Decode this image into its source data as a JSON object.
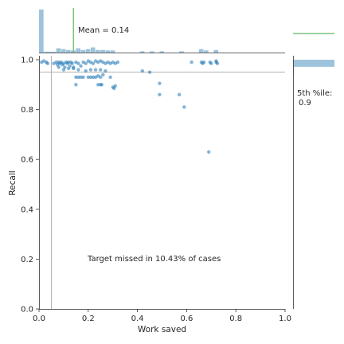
{
  "chart_data": [
    {
      "type": "scatter",
      "title": "",
      "xlabel": "Work saved",
      "ylabel": "Recall",
      "xlim": [
        0,
        1
      ],
      "ylim": [
        0,
        1
      ],
      "xticks": [
        "0.0",
        "0.2",
        "0.4",
        "0.6",
        "0.8",
        "1.0"
      ],
      "yticks": [
        "0.0",
        "0.2",
        "0.4",
        "0.6",
        "0.8",
        "1.0"
      ],
      "point_color": "#1f77b4",
      "reference_lines": {
        "x": 0.05,
        "y": 0.95,
        "color": "#b0b0b0"
      },
      "annotation": "Target missed in 10.43% of cases",
      "points": [
        {
          "x": 0.01,
          "y": 0.99
        },
        {
          "x": 0.02,
          "y": 0.995
        },
        {
          "x": 0.03,
          "y": 0.99
        },
        {
          "x": 0.035,
          "y": 0.985
        },
        {
          "x": 0.06,
          "y": 0.985
        },
        {
          "x": 0.07,
          "y": 0.99
        },
        {
          "x": 0.075,
          "y": 0.98
        },
        {
          "x": 0.08,
          "y": 0.99
        },
        {
          "x": 0.085,
          "y": 0.985
        },
        {
          "x": 0.09,
          "y": 0.99
        },
        {
          "x": 0.095,
          "y": 0.98
        },
        {
          "x": 0.1,
          "y": 0.985
        },
        {
          "x": 0.105,
          "y": 0.97
        },
        {
          "x": 0.11,
          "y": 0.99
        },
        {
          "x": 0.115,
          "y": 0.985
        },
        {
          "x": 0.12,
          "y": 0.99
        },
        {
          "x": 0.125,
          "y": 0.975
        },
        {
          "x": 0.13,
          "y": 0.99
        },
        {
          "x": 0.135,
          "y": 0.985
        },
        {
          "x": 0.14,
          "y": 0.97
        },
        {
          "x": 0.15,
          "y": 0.99
        },
        {
          "x": 0.16,
          "y": 0.985
        },
        {
          "x": 0.17,
          "y": 0.975
        },
        {
          "x": 0.18,
          "y": 0.99
        },
        {
          "x": 0.19,
          "y": 0.985
        },
        {
          "x": 0.2,
          "y": 0.995
        },
        {
          "x": 0.21,
          "y": 0.99
        },
        {
          "x": 0.22,
          "y": 0.985
        },
        {
          "x": 0.23,
          "y": 0.995
        },
        {
          "x": 0.24,
          "y": 0.99
        },
        {
          "x": 0.25,
          "y": 0.995
        },
        {
          "x": 0.26,
          "y": 0.99
        },
        {
          "x": 0.27,
          "y": 0.985
        },
        {
          "x": 0.28,
          "y": 0.99
        },
        {
          "x": 0.29,
          "y": 0.985
        },
        {
          "x": 0.3,
          "y": 0.99
        },
        {
          "x": 0.31,
          "y": 0.985
        },
        {
          "x": 0.32,
          "y": 0.99
        },
        {
          "x": 0.1,
          "y": 0.96
        },
        {
          "x": 0.14,
          "y": 0.965
        },
        {
          "x": 0.16,
          "y": 0.96
        },
        {
          "x": 0.19,
          "y": 0.955
        },
        {
          "x": 0.21,
          "y": 0.96
        },
        {
          "x": 0.23,
          "y": 0.96
        },
        {
          "x": 0.25,
          "y": 0.96
        },
        {
          "x": 0.27,
          "y": 0.955
        },
        {
          "x": 0.12,
          "y": 0.965
        },
        {
          "x": 0.08,
          "y": 0.97
        },
        {
          "x": 0.15,
          "y": 0.93
        },
        {
          "x": 0.16,
          "y": 0.93
        },
        {
          "x": 0.17,
          "y": 0.93
        },
        {
          "x": 0.18,
          "y": 0.93
        },
        {
          "x": 0.2,
          "y": 0.93
        },
        {
          "x": 0.21,
          "y": 0.93
        },
        {
          "x": 0.22,
          "y": 0.93
        },
        {
          "x": 0.23,
          "y": 0.93
        },
        {
          "x": 0.24,
          "y": 0.935
        },
        {
          "x": 0.25,
          "y": 0.93
        },
        {
          "x": 0.29,
          "y": 0.93
        },
        {
          "x": 0.26,
          "y": 0.94
        },
        {
          "x": 0.15,
          "y": 0.9
        },
        {
          "x": 0.24,
          "y": 0.9
        },
        {
          "x": 0.25,
          "y": 0.9
        },
        {
          "x": 0.255,
          "y": 0.9
        },
        {
          "x": 0.3,
          "y": 0.89
        },
        {
          "x": 0.31,
          "y": 0.895
        },
        {
          "x": 0.305,
          "y": 0.885
        },
        {
          "x": 0.42,
          "y": 0.955
        },
        {
          "x": 0.45,
          "y": 0.95
        },
        {
          "x": 0.49,
          "y": 0.905
        },
        {
          "x": 0.49,
          "y": 0.86
        },
        {
          "x": 0.57,
          "y": 0.86
        },
        {
          "x": 0.59,
          "y": 0.81
        },
        {
          "x": 0.62,
          "y": 0.99
        },
        {
          "x": 0.66,
          "y": 0.99
        },
        {
          "x": 0.665,
          "y": 0.985
        },
        {
          "x": 0.67,
          "y": 0.99
        },
        {
          "x": 0.695,
          "y": 0.99
        },
        {
          "x": 0.7,
          "y": 0.985
        },
        {
          "x": 0.72,
          "y": 0.99
        },
        {
          "x": 0.725,
          "y": 0.985
        },
        {
          "x": 0.72,
          "y": 0.995
        },
        {
          "x": 0.69,
          "y": 0.63
        }
      ]
    },
    {
      "type": "bar",
      "orientation": "vertical",
      "bar_color": "#9ec4dc",
      "bins": [
        {
          "x0": 0.0,
          "x1": 0.02,
          "value": 1.0
        },
        {
          "x0": 0.02,
          "x1": 0.07,
          "value": 0.02
        },
        {
          "x0": 0.07,
          "x1": 0.09,
          "value": 0.1
        },
        {
          "x0": 0.09,
          "x1": 0.11,
          "value": 0.08
        },
        {
          "x0": 0.11,
          "x1": 0.13,
          "value": 0.06
        },
        {
          "x0": 0.13,
          "x1": 0.15,
          "value": 0.05
        },
        {
          "x0": 0.15,
          "x1": 0.17,
          "value": 0.1
        },
        {
          "x0": 0.17,
          "x1": 0.19,
          "value": 0.06
        },
        {
          "x0": 0.19,
          "x1": 0.21,
          "value": 0.08
        },
        {
          "x0": 0.21,
          "x1": 0.23,
          "value": 0.12
        },
        {
          "x0": 0.23,
          "x1": 0.25,
          "value": 0.06
        },
        {
          "x0": 0.25,
          "x1": 0.27,
          "value": 0.06
        },
        {
          "x0": 0.27,
          "x1": 0.29,
          "value": 0.05
        },
        {
          "x0": 0.29,
          "x1": 0.31,
          "value": 0.05
        },
        {
          "x0": 0.41,
          "x1": 0.43,
          "value": 0.03
        },
        {
          "x0": 0.45,
          "x1": 0.47,
          "value": 0.03
        },
        {
          "x0": 0.49,
          "x1": 0.51,
          "value": 0.03
        },
        {
          "x0": 0.57,
          "x1": 0.59,
          "value": 0.03
        },
        {
          "x0": 0.65,
          "x1": 0.67,
          "value": 0.08
        },
        {
          "x0": 0.67,
          "x1": 0.69,
          "value": 0.05
        },
        {
          "x0": 0.71,
          "x1": 0.73,
          "value": 0.06
        }
      ],
      "reference_line": {
        "x": 0.14,
        "color": "#7cc47c"
      },
      "annotation": "Mean = 0.14"
    },
    {
      "type": "bar",
      "orientation": "horizontal",
      "bar_color": "#9ec4dc",
      "bins": [
        {
          "y0": 0.97,
          "y1": 1.0,
          "value": 1.0
        },
        {
          "y0": 0.94,
          "y1": 0.97,
          "value": 0.02
        }
      ],
      "reference_line": {
        "y": 0.9,
        "color": "#7cc47c"
      },
      "annotation_lines": [
        "5th %ile:",
        "0.9"
      ]
    }
  ]
}
